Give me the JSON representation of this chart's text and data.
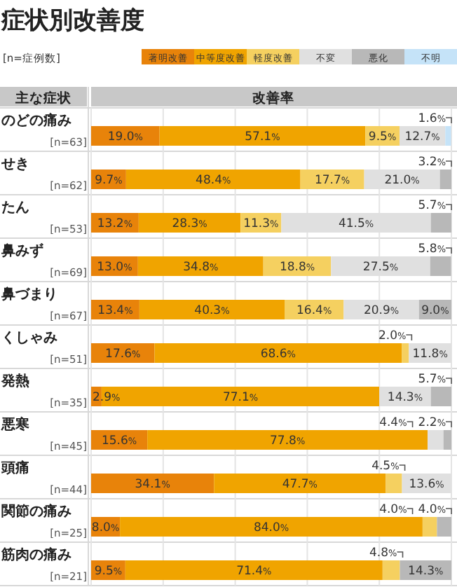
{
  "chart_data": {
    "type": "bar",
    "orientation": "horizontal",
    "stacked": true,
    "title": "症状別改善度",
    "ylabel": "主な症状",
    "xlabel": "改善率",
    "annotations": [
      "[n=症例数]"
    ],
    "legend": "top right",
    "grid": "x",
    "xlim": [
      0,
      100
    ],
    "xticks": [
      {
        "value": 0,
        "label": null
      },
      {
        "value": 20,
        "label": null
      },
      {
        "value": 40,
        "label": null
      },
      {
        "value": 60,
        "label": null
      },
      {
        "value": 80,
        "label": null
      },
      {
        "value": 100,
        "label": null
      }
    ],
    "categories": [
      "のどの痛み\n[n=63]",
      "せき\n[n=62]",
      "たん\n[n=53]",
      "鼻みず\n[n=69]",
      "鼻づまり\n[n=67]",
      "くしゃみ\n[n=51]",
      "発熱\n[n=35]",
      "悪寒\n[n=45]",
      "頭痛\n[n=44]",
      "関節の痛み\n[n=25]",
      "筋肉の痛み\n[n=21]"
    ],
    "series": [
      {
        "name": "著明改善",
        "color": "#e8830a",
        "values": [
          19.0,
          9.7,
          13.2,
          13.0,
          13.4,
          17.6,
          2.9,
          15.6,
          34.1,
          8.0,
          9.5
        ],
        "value_labels": [
          "19.0%",
          "9.7%",
          "13.2%",
          "13.0%",
          "13.4%",
          "17.6%",
          "2.9%",
          "15.6%",
          "34.1%",
          "8.0%",
          "9.5%"
        ]
      },
      {
        "name": "中等度改善",
        "color": "#f0a400",
        "values": [
          57.1,
          48.4,
          28.3,
          34.8,
          40.3,
          68.6,
          77.1,
          77.8,
          47.7,
          84.0,
          71.4
        ],
        "value_labels": [
          "57.1%",
          "48.4%",
          "28.3%",
          "34.8%",
          "40.3%",
          "68.6%",
          "77.1%",
          "77.8%",
          "47.7%",
          "84.0%",
          "71.4%"
        ]
      },
      {
        "name": "軽度改善",
        "color": "#f5d060",
        "values": [
          9.5,
          17.7,
          11.3,
          18.8,
          16.4,
          2.0,
          null,
          null,
          4.5,
          4.0,
          4.8
        ],
        "value_labels": [
          "9.5%",
          "17.7%",
          "11.3%",
          "18.8%",
          "16.4%",
          "2.0%",
          null,
          null,
          "4.5%",
          "4.0%",
          "4.8%"
        ]
      },
      {
        "name": "不変",
        "color": "#e0e0e0",
        "values": [
          12.7,
          21.0,
          41.5,
          27.5,
          20.9,
          11.8,
          14.3,
          4.4,
          13.6,
          null,
          null
        ],
        "value_labels": [
          "12.7%",
          "21.0%",
          "41.5%",
          "27.5%",
          "20.9%",
          "11.8%",
          "14.3%",
          "4.4%",
          "13.6%",
          null,
          null
        ]
      },
      {
        "name": "悪化",
        "color": "#b8b8b8",
        "values": [
          null,
          3.2,
          5.7,
          5.8,
          9.0,
          null,
          5.7,
          2.2,
          null,
          4.0,
          14.3
        ],
        "value_labels": [
          null,
          "3.2%",
          "5.7%",
          "5.8%",
          "9.0%",
          null,
          "5.7%",
          "2.2%",
          null,
          "4.0%",
          "14.3%"
        ]
      },
      {
        "name": "不明",
        "color": "#c5e3f8",
        "values": [
          1.6,
          null,
          null,
          null,
          null,
          null,
          null,
          null,
          null,
          null,
          null
        ],
        "value_labels": [
          "1.6%",
          null,
          null,
          null,
          null,
          null,
          null,
          null,
          null,
          null,
          null
        ]
      }
    ]
  }
}
